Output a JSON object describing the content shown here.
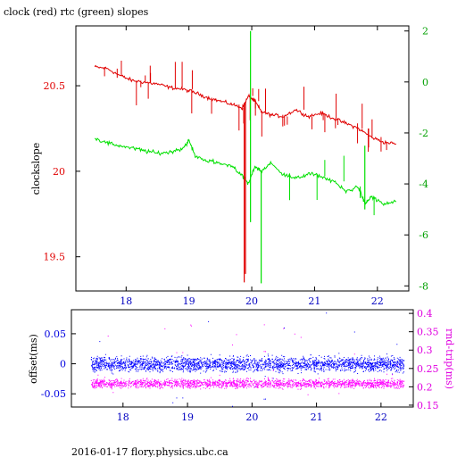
{
  "title": "clock (red) rtc (green) slopes",
  "footer": "2016-01-17  flory.physics.ubc.ca",
  "chart_data": [
    {
      "type": "line",
      "title": "clock (red) rtc (green) slopes",
      "xlim": [
        17.2,
        22.5
      ],
      "x_ticks": [
        18,
        19,
        20,
        21,
        22
      ],
      "left_axis": {
        "label": "clockslope",
        "lim": [
          19.3,
          20.85
        ],
        "ticks": [
          19.5,
          20,
          20.5
        ],
        "color": "#e00000"
      },
      "right_axis": {
        "label": "",
        "lim": [
          -8.2,
          2.2
        ],
        "ticks": [
          -8,
          -6,
          -4,
          -2,
          0,
          2
        ],
        "color": "#00c000"
      },
      "series": [
        {
          "name": "clock",
          "axis": "left",
          "color": "#e00000",
          "x": [
            17.5,
            17.7,
            17.9,
            18.1,
            18.3,
            18.5,
            18.7,
            18.9,
            19.1,
            19.3,
            19.5,
            19.7,
            19.85,
            19.95,
            20.05,
            20.15,
            20.3,
            20.5,
            20.7,
            20.9,
            21.1,
            21.3,
            21.5,
            21.7,
            21.9,
            22.1,
            22.3
          ],
          "y": [
            20.61,
            20.6,
            20.56,
            20.53,
            20.52,
            20.51,
            20.49,
            20.48,
            20.46,
            20.43,
            20.41,
            20.39,
            20.37,
            20.44,
            20.41,
            20.35,
            20.33,
            20.32,
            20.36,
            20.32,
            20.34,
            20.31,
            20.28,
            20.25,
            20.2,
            20.17,
            20.16
          ]
        },
        {
          "name": "rtc",
          "axis": "right",
          "color": "#00e000",
          "x": [
            17.5,
            17.7,
            17.9,
            18.1,
            18.3,
            18.5,
            18.7,
            18.9,
            19.0,
            19.1,
            19.3,
            19.5,
            19.7,
            19.85,
            19.95,
            20.05,
            20.15,
            20.3,
            20.5,
            20.7,
            20.9,
            21.1,
            21.3,
            21.5,
            21.7,
            21.8,
            21.9,
            22.1,
            22.3
          ],
          "y": [
            -2.2,
            -2.4,
            -2.5,
            -2.6,
            -2.7,
            -2.8,
            -2.75,
            -2.6,
            -2.3,
            -2.9,
            -3.1,
            -3.2,
            -3.3,
            -3.7,
            -4.0,
            -3.3,
            -3.5,
            -3.2,
            -3.6,
            -3.8,
            -3.6,
            -3.7,
            -3.9,
            -4.3,
            -4.1,
            -4.8,
            -4.5,
            -4.8,
            -4.7
          ]
        }
      ]
    },
    {
      "type": "scatter",
      "xlim": [
        17.2,
        22.5
      ],
      "x_ticks": [
        18,
        19,
        20,
        21,
        22
      ],
      "left_axis": {
        "label": "offset(ms)",
        "lim": [
          -0.072,
          0.09
        ],
        "ticks": [
          -0.05,
          0,
          0.05
        ],
        "color": "#0000e0"
      },
      "right_axis": {
        "label": "rnd-trip(ms)",
        "lim": [
          0.145,
          0.41
        ],
        "ticks": [
          0.15,
          0.2,
          0.25,
          0.3,
          0.35,
          0.4
        ],
        "color": "#e000e0"
      },
      "series": [
        {
          "name": "offset",
          "axis": "left",
          "color": "#0000ff",
          "x_range": [
            17.5,
            22.35
          ],
          "center": 0,
          "spread": 0.018
        },
        {
          "name": "rnd-trip",
          "axis": "right",
          "color": "#ff00ff",
          "x_range": [
            17.5,
            22.35
          ],
          "center": 0.21,
          "spread": 0.018
        }
      ]
    }
  ]
}
